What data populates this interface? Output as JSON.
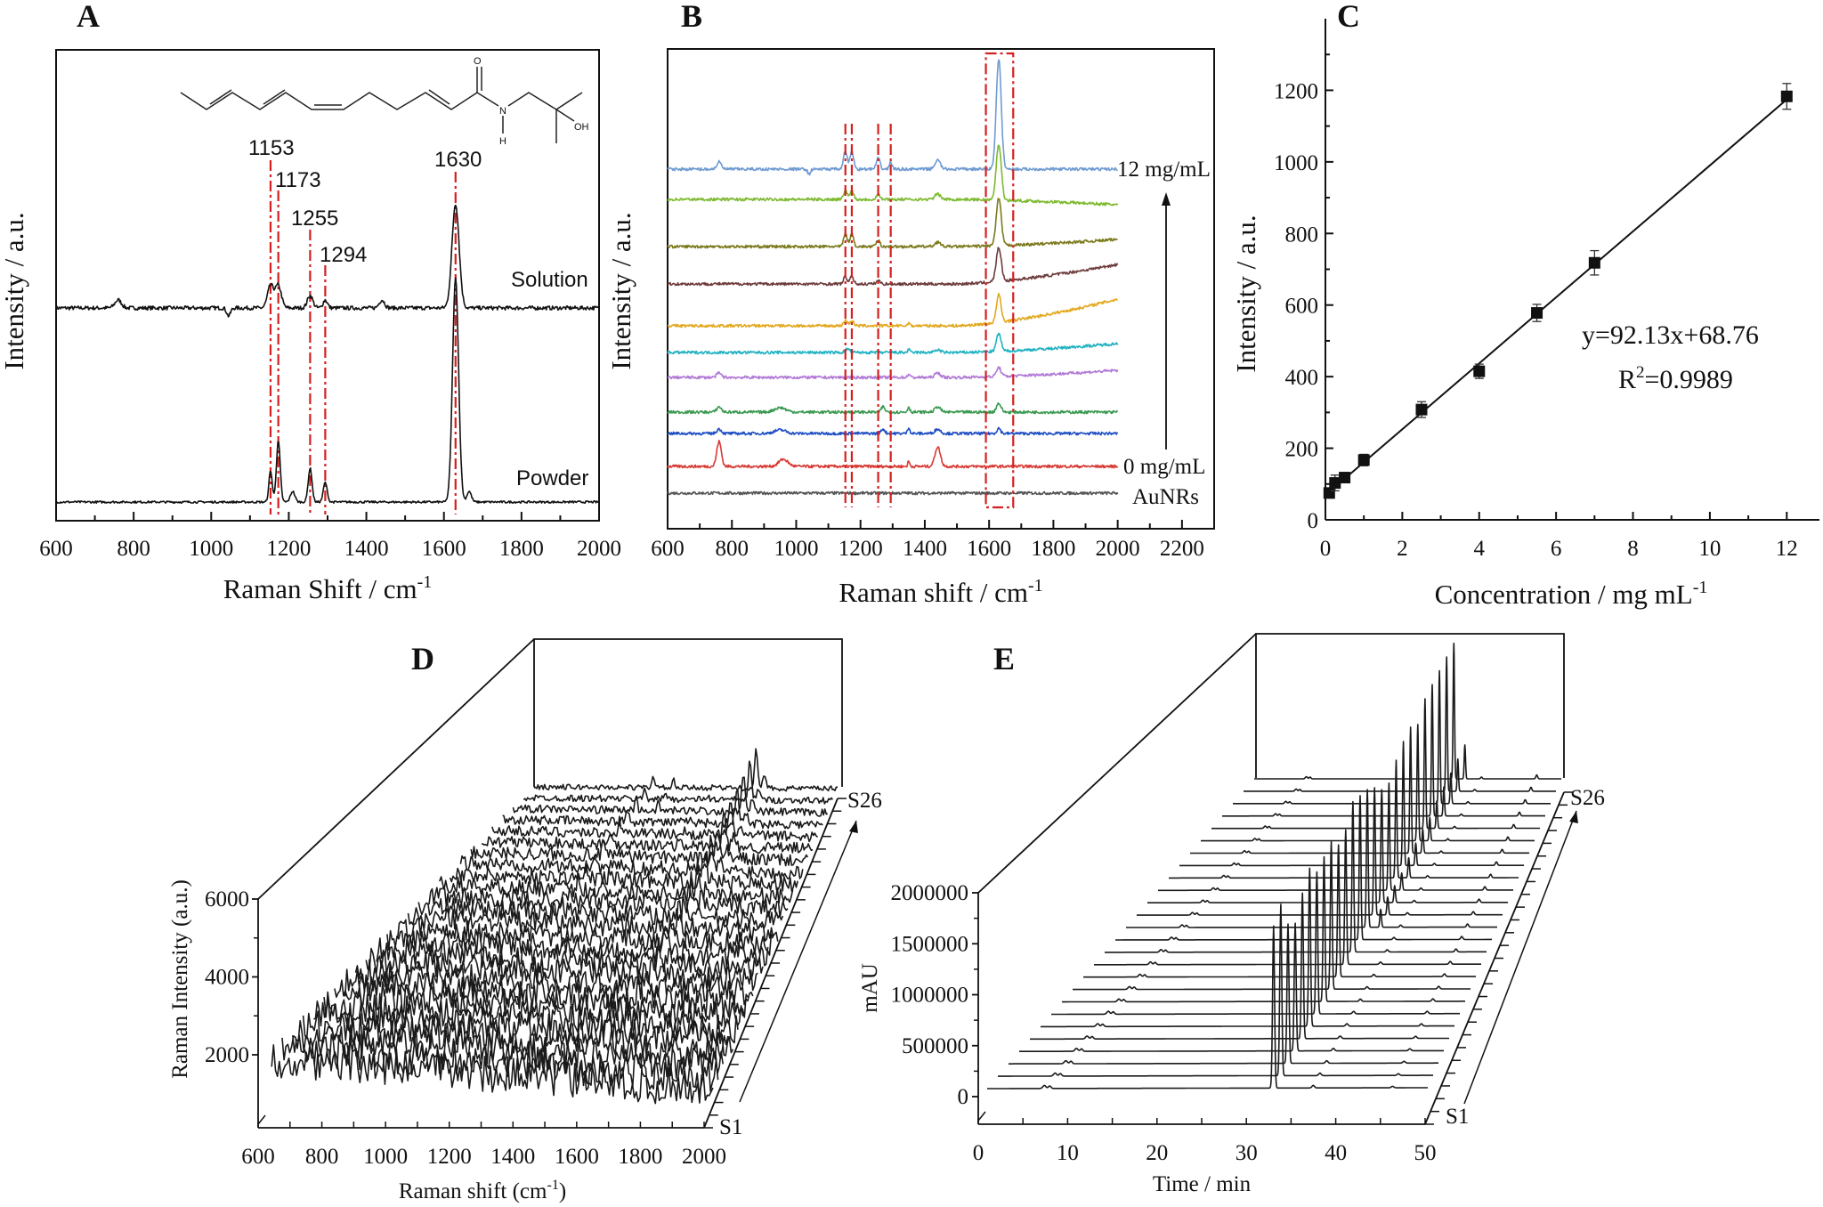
{
  "colors": {
    "accent_red": "#d42020",
    "ink": "#111111"
  },
  "chart_data": [
    {
      "panel": "A",
      "type": "line",
      "xlabel": "Raman Shift / cm",
      "xlabel_sup": "-1",
      "ylabel": "Intensity / a.u.",
      "xlim": [
        600,
        2000
      ],
      "xticks": [
        600,
        800,
        1000,
        1200,
        1400,
        1600,
        1800,
        2000
      ],
      "ylim": [
        0,
        529
      ],
      "grid": false,
      "series": [
        {
          "name": "Solution",
          "color": "#111111",
          "offset": 239,
          "noise": 2.2,
          "peaks": [
            [
              760,
              9,
              12
            ],
            [
              1045,
              -9,
              7
            ],
            [
              1153,
              25,
              11
            ],
            [
              1173,
              25,
              11
            ],
            [
              1255,
              14,
              10
            ],
            [
              1294,
              9,
              8
            ],
            [
              1440,
              9,
              10
            ],
            [
              1630,
              117,
              13
            ]
          ]
        },
        {
          "name": "Powder",
          "color": "#111111",
          "offset": 21,
          "noise": 1.2,
          "peaks": [
            [
              1153,
              35,
              6
            ],
            [
              1173,
              68,
              7
            ],
            [
              1210,
              12,
              8
            ],
            [
              1255,
              38,
              7
            ],
            [
              1294,
              22,
              7
            ],
            [
              1630,
              251,
              11
            ],
            [
              1665,
              12,
              8
            ]
          ]
        }
      ],
      "peak_labels": [
        "1153",
        "1173",
        "1255",
        "1294",
        "1630"
      ],
      "marked_peaks": [
        1153,
        1173,
        1255,
        1294,
        1630
      ],
      "molecule_labels": {
        "o": "O",
        "n": "N",
        "h": "H",
        "oh": "OH"
      }
    },
    {
      "panel": "B",
      "type": "line",
      "xlabel": "Raman shift / cm",
      "xlabel_sup": "-1",
      "ylabel": "Intensity / a.u.",
      "xlim": [
        600,
        2300
      ],
      "xticks": [
        600,
        800,
        1000,
        1200,
        1400,
        1600,
        1800,
        2000,
        2200
      ],
      "ylim": [
        0,
        539
      ],
      "grid": false,
      "marked_peaks": [
        1153,
        1173,
        1255,
        1294
      ],
      "marked_band": [
        1590,
        1675
      ],
      "labels": {
        "top": "12 mg/mL",
        "bottom": "0 mg/mL",
        "blank": "AuNRs"
      },
      "series": [
        {
          "color": "#555555",
          "offset": 40,
          "drift": 0,
          "peaks": []
        },
        {
          "color": "#d83a34",
          "offset": 70,
          "drift": 0,
          "peaks": [
            [
              760,
              28,
              10
            ],
            [
              960,
              8,
              20
            ],
            [
              1350,
              6,
              4
            ],
            [
              1440,
              22,
              12
            ]
          ]
        },
        {
          "color": "#1f4fc4",
          "offset": 107,
          "drift": 0,
          "peaks": [
            [
              760,
              5,
              10
            ],
            [
              950,
              4,
              25
            ],
            [
              1270,
              5,
              8
            ],
            [
              1350,
              7,
              5
            ],
            [
              1440,
              5,
              12
            ],
            [
              1630,
              6,
              8
            ]
          ]
        },
        {
          "color": "#3c9a52",
          "offset": 131,
          "drift": 0,
          "peaks": [
            [
              760,
              6,
              10
            ],
            [
              950,
              5,
              25
            ],
            [
              1270,
              6,
              8
            ],
            [
              1350,
              6,
              5
            ],
            [
              1440,
              6,
              12
            ],
            [
              1630,
              10,
              10
            ]
          ]
        },
        {
          "color": "#b27ad6",
          "offset": 170,
          "drift": 8,
          "peaks": [
            [
              760,
              5,
              10
            ],
            [
              1350,
              4,
              5
            ],
            [
              1440,
              5,
              12
            ],
            [
              1630,
              10,
              10
            ]
          ]
        },
        {
          "color": "#21b2c2",
          "offset": 198,
          "drift": 10,
          "peaks": [
            [
              1160,
              4,
              10
            ],
            [
              1350,
              4,
              4
            ],
            [
              1440,
              3,
              12
            ],
            [
              1630,
              20,
              10
            ]
          ]
        },
        {
          "color": "#e2a81f",
          "offset": 228,
          "drift": 30,
          "peaks": [
            [
              1153,
              6,
              8
            ],
            [
              1173,
              6,
              8
            ],
            [
              1350,
              4,
              4
            ],
            [
              1630,
              31,
              10
            ]
          ]
        },
        {
          "color": "#6e3c3c",
          "offset": 275,
          "drift": 22,
          "peaks": [
            [
              1153,
              8,
              8
            ],
            [
              1173,
              8,
              8
            ],
            [
              1255,
              4,
              8
            ],
            [
              1630,
              38,
              11
            ]
          ]
        },
        {
          "color": "#7c7a1e",
          "offset": 317,
          "drift": 8,
          "peaks": [
            [
              1153,
              14,
              8
            ],
            [
              1173,
              14,
              8
            ],
            [
              1255,
              7,
              8
            ],
            [
              1440,
              5,
              12
            ],
            [
              1630,
              53,
              11
            ]
          ]
        },
        {
          "color": "#7dba30",
          "offset": 370,
          "drift": -6,
          "peaks": [
            [
              1153,
              10,
              8
            ],
            [
              1173,
              10,
              8
            ],
            [
              1255,
              6,
              8
            ],
            [
              1440,
              6,
              12
            ],
            [
              1630,
              63,
              11
            ]
          ]
        },
        {
          "color": "#6f9bd2",
          "offset": 404,
          "drift": 0,
          "peaks": [
            [
              760,
              8,
              10
            ],
            [
              1040,
              -6,
              6
            ],
            [
              1153,
              20,
              8
            ],
            [
              1173,
              20,
              8
            ],
            [
              1255,
              12,
              8
            ],
            [
              1294,
              8,
              6
            ],
            [
              1440,
              10,
              12
            ],
            [
              1630,
              124,
              11
            ]
          ]
        }
      ]
    },
    {
      "panel": "C",
      "type": "scatter",
      "xlabel": "Concentration / mg mL",
      "xlabel_sup": "-1",
      "ylabel": "Intensity / a.u.",
      "xlim": [
        0,
        12.85
      ],
      "ylim": [
        0,
        1400
      ],
      "xticks": [
        0,
        2,
        4,
        6,
        8,
        10,
        12
      ],
      "yticks": [
        0,
        200,
        400,
        600,
        800,
        1000,
        1200
      ],
      "grid": false,
      "points": [
        {
          "x": 0.1,
          "y": 75,
          "err": 14
        },
        {
          "x": 0.25,
          "y": 103,
          "err": 22
        },
        {
          "x": 0.5,
          "y": 118,
          "err": 10
        },
        {
          "x": 1,
          "y": 167,
          "err": 16
        },
        {
          "x": 2.5,
          "y": 308,
          "err": 22
        },
        {
          "x": 4,
          "y": 415,
          "err": 20
        },
        {
          "x": 5.5,
          "y": 578,
          "err": 24
        },
        {
          "x": 7,
          "y": 718,
          "err": 34
        },
        {
          "x": 12,
          "y": 1183,
          "err": 36
        }
      ],
      "fit": {
        "slope": 92.13,
        "intercept": 68.76,
        "x_range": [
          0.1,
          12
        ]
      },
      "equation": "y=92.13x+68.76",
      "r2_label": "R",
      "r2_sup": "2",
      "r2_value": "=0.9989"
    },
    {
      "panel": "D",
      "type": "line",
      "subtype": "3d-waterfall",
      "xlabel": "Raman shift (cm",
      "xlabel_sup": "-1",
      "xlabel_end": ")",
      "ylabel": "Raman Intensity (a.u.)",
      "xlim": [
        600,
        2000
      ],
      "xticks": [
        600,
        800,
        1000,
        1200,
        1400,
        1600,
        1800,
        2000
      ],
      "yticks": [
        2000,
        4000,
        6000
      ],
      "ylim": [
        1400,
        6000
      ],
      "series_count": 26,
      "depth_labels": {
        "first": "S1",
        "last": "S26"
      },
      "peaks": [
        1153,
        1173,
        1255,
        1440,
        1630
      ]
    },
    {
      "panel": "E",
      "type": "line",
      "subtype": "3d-waterfall",
      "xlabel": "Time / min",
      "ylabel": "mAU",
      "xlim": [
        0,
        50
      ],
      "xticks": [
        0,
        10,
        20,
        30,
        40,
        50
      ],
      "yticks": [
        0,
        500000,
        1000000,
        1500000,
        2000000
      ],
      "ylim": [
        -250000,
        2000000
      ],
      "series_count": 26,
      "depth_labels": {
        "first": "S1",
        "last": "S26"
      },
      "main_peak_time": 32.5,
      "main_peak_heights": [
        1590000,
        1700000,
        1400000,
        1300000,
        1500000,
        1650000,
        1500000,
        1550000,
        1600000,
        1450000,
        1500000,
        1700000,
        1650000,
        1600000,
        1500000,
        1350000,
        1300000,
        1450000,
        1550000,
        1600000,
        1500000,
        1700000,
        1750000,
        1800000,
        1850000,
        1900000
      ]
    }
  ]
}
